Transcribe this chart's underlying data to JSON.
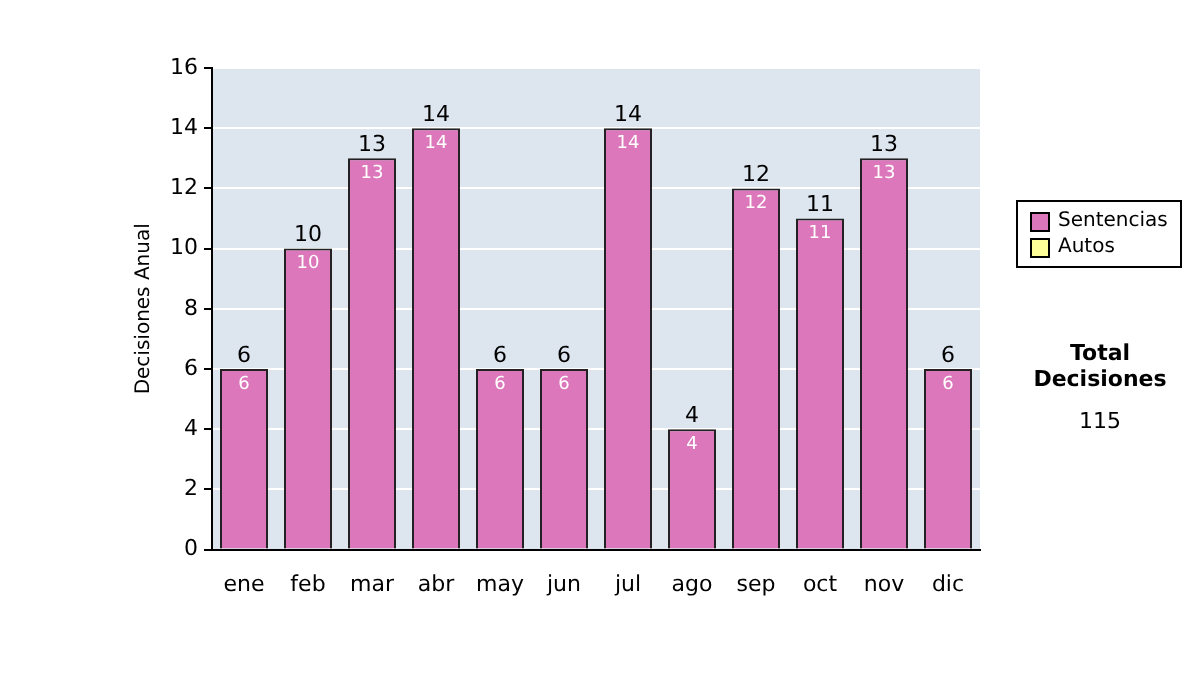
{
  "chart_data": {
    "type": "bar",
    "stacked": true,
    "ylabel": "Decisiones Anual",
    "categories": [
      "ene",
      "feb",
      "mar",
      "abr",
      "may",
      "jun",
      "jul",
      "ago",
      "sep",
      "oct",
      "nov",
      "dic"
    ],
    "series": [
      {
        "name": "Sentencias",
        "color": "#dd77bb",
        "values": [
          6,
          10,
          13,
          14,
          6,
          6,
          14,
          4,
          12,
          11,
          13,
          6
        ],
        "value_labels": [
          "6",
          "10",
          "13",
          "14",
          "6",
          "6",
          "14",
          "4",
          "12",
          "11",
          "13",
          "6"
        ]
      },
      {
        "name": "Autos",
        "color": "#ffff99",
        "values": [
          0,
          0,
          0,
          0,
          0,
          0,
          0,
          0,
          0,
          0,
          0,
          0
        ]
      }
    ],
    "totals": [
      "6",
      "10",
      "13",
      "14",
      "6",
      "6",
      "14",
      "4",
      "12",
      "11",
      "13",
      "6"
    ],
    "ylim": [
      0,
      16
    ],
    "yticks": [
      0,
      2,
      4,
      6,
      8,
      10,
      12,
      14,
      16
    ],
    "grid": "y",
    "legend": "right",
    "annotations": [
      "Total Decisiones",
      "115"
    ]
  }
}
